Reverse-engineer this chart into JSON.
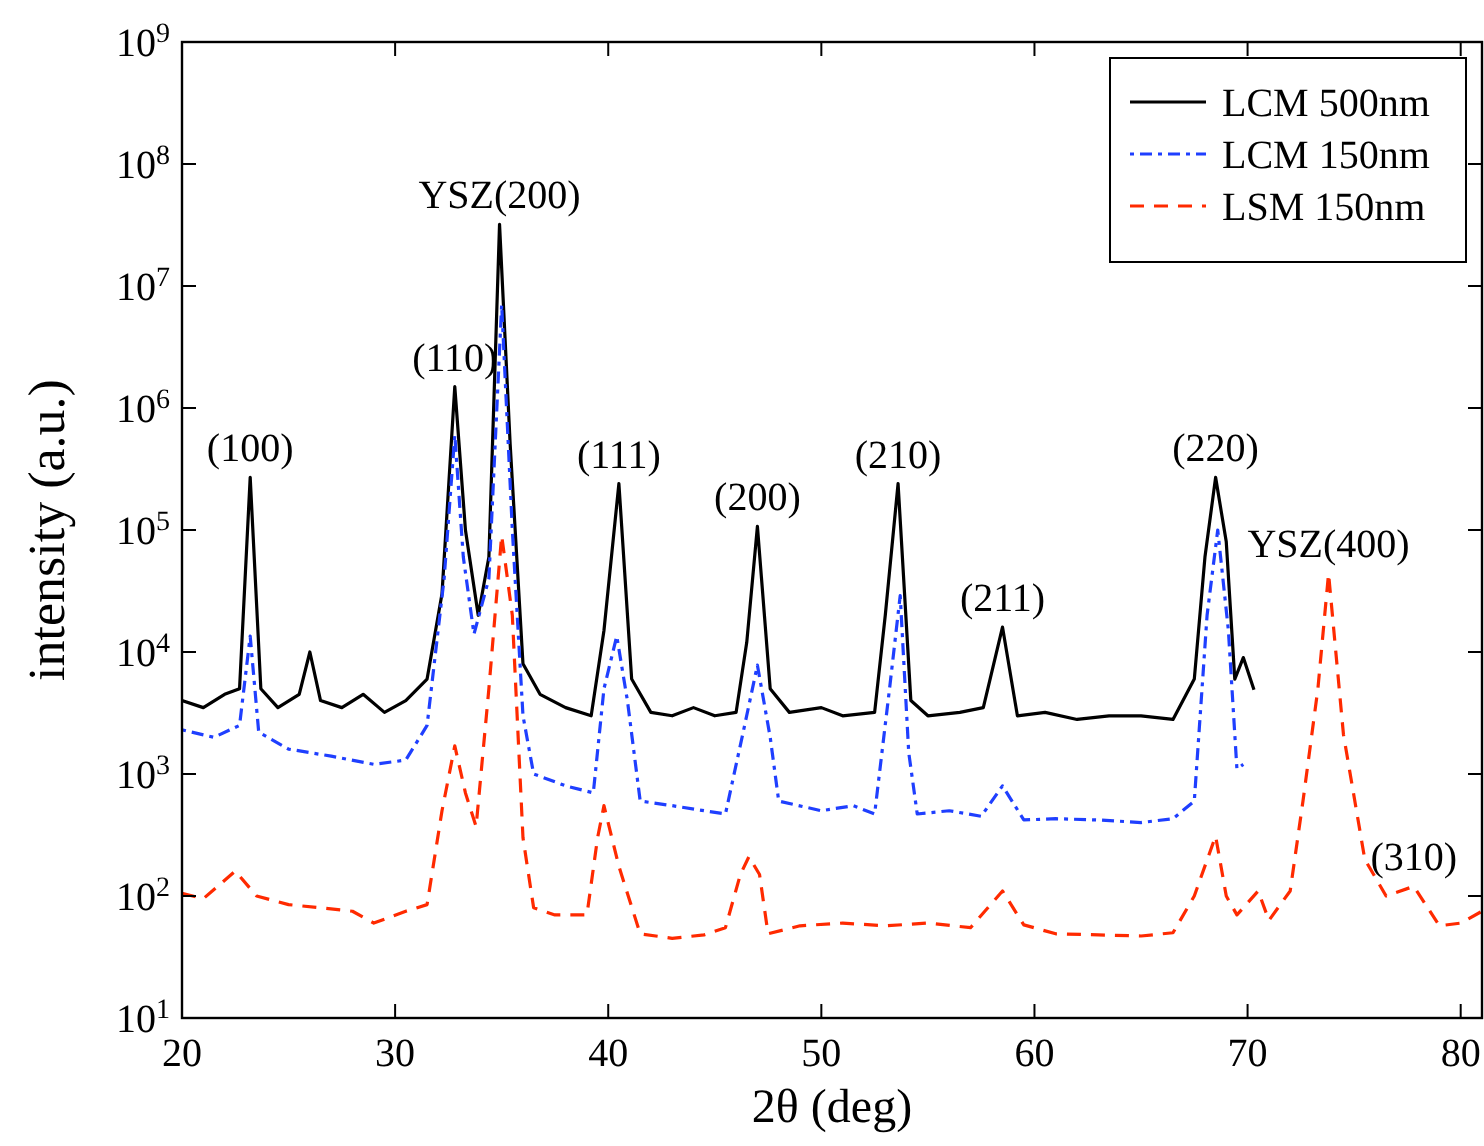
{
  "chart_data": {
    "type": "line",
    "xlabel": "2θ (deg)",
    "ylabel": "intensity (a.u.)",
    "log": "y",
    "grid": false,
    "legend": "top right",
    "xlim": [
      20,
      81
    ],
    "xticks": [
      20,
      30,
      40,
      50,
      60,
      70,
      80
    ],
    "ylim": [
      10,
      1000000000
    ],
    "yticks": [
      {
        "value": 10,
        "label": "10$^{1}$"
      },
      {
        "value": 100,
        "label": "10$^{2}$"
      },
      {
        "value": 1000,
        "label": "10$^{3}$"
      },
      {
        "value": 10000,
        "label": "10$^{4}$"
      },
      {
        "value": 100000,
        "label": "10$^{5}$"
      },
      {
        "value": 1000000,
        "label": "10$^{6}$"
      },
      {
        "value": 10000000,
        "label": "10$^{7}$"
      },
      {
        "value": 100000000,
        "label": "10$^{8}$"
      },
      {
        "value": 1000000000,
        "label": "10$^{9}$"
      }
    ],
    "series": [
      {
        "name": "LCM 500nm",
        "color": "#000000",
        "line_style": "solid",
        "x": [
          20,
          21,
          22,
          22.7,
          23.2,
          23.7,
          24.5,
          25.5,
          26,
          26.5,
          27.5,
          28.5,
          29.5,
          30.5,
          31.5,
          32.2,
          32.8,
          33.3,
          33.9,
          34.4,
          34.9,
          35.4,
          36,
          36.8,
          38,
          39.2,
          39.8,
          40.5,
          41.1,
          42,
          43,
          44,
          45,
          46,
          46.5,
          47,
          47.6,
          48.5,
          50,
          51,
          52.5,
          53,
          53.6,
          54.2,
          55,
          56.5,
          57.6,
          58.5,
          59.2,
          60.5,
          62,
          63.5,
          65,
          66.5,
          67.5,
          68,
          68.5,
          69,
          69.4,
          69.8,
          70.3
        ],
        "values": [
          4000,
          3500,
          4500,
          5000,
          270000,
          5000,
          3500,
          4500,
          10000,
          4000,
          3500,
          4500,
          3200,
          4000,
          6000,
          30000,
          1500000,
          100000,
          20000,
          60000,
          32000000,
          500000,
          8000,
          4500,
          3500,
          3000,
          15000,
          240000,
          6000,
          3200,
          3000,
          3500,
          3000,
          3200,
          12000,
          107000,
          5000,
          3200,
          3500,
          3000,
          3200,
          20000,
          240000,
          4000,
          3000,
          3200,
          3500,
          16000,
          3000,
          3200,
          2800,
          3000,
          3000,
          2800,
          6000,
          60000,
          270000,
          80000,
          6000,
          9000,
          4900
        ]
      },
      {
        "name": "LCM 150nm",
        "color": "#1f3fff",
        "line_style": "dotted",
        "x": [
          20,
          21.5,
          22.7,
          23.2,
          23.6,
          25,
          27,
          29,
          30.5,
          31.5,
          32.3,
          32.8,
          33.2,
          33.7,
          34.4,
          35,
          35.5,
          36,
          36.5,
          38,
          39.3,
          39.8,
          40.4,
          40.9,
          41.5,
          43,
          44.5,
          45.5,
          46.4,
          47,
          47.6,
          48,
          50,
          51.5,
          52.5,
          53.2,
          53.7,
          54.1,
          54.5,
          56,
          57.5,
          58.5,
          59.5,
          61,
          63,
          65,
          66.5,
          67.5,
          68.1,
          68.6,
          69.1,
          69.5,
          69.8
        ],
        "values": [
          2300,
          2000,
          2500,
          13500,
          2200,
          1600,
          1400,
          1200,
          1300,
          2500,
          40000,
          600000,
          60000,
          14000,
          40000,
          7000000,
          100000,
          3000,
          1000,
          800,
          700,
          5000,
          13500,
          4000,
          600,
          550,
          500,
          470,
          2500,
          7800,
          2000,
          600,
          500,
          550,
          470,
          5000,
          29000,
          1500,
          470,
          500,
          450,
          800,
          420,
          430,
          420,
          400,
          430,
          600,
          20000,
          100000,
          15000,
          1100,
          1200
        ]
      },
      {
        "name": "LSM 150nm",
        "color": "#ff2a00",
        "line_style": "dashed",
        "x": [
          20,
          21,
          22.5,
          23.5,
          25,
          26.5,
          28,
          29,
          30.5,
          31.5,
          32.2,
          32.8,
          33.3,
          33.8,
          34.4,
          35,
          35.5,
          36,
          36.5,
          37.5,
          39,
          39.5,
          39.8,
          40.5,
          41.5,
          43,
          44.5,
          45.5,
          46.2,
          46.6,
          47.1,
          47.5,
          49,
          51,
          53,
          55,
          57,
          58.5,
          59.5,
          61,
          63,
          65,
          66.5,
          67.5,
          68.5,
          69,
          69.5,
          70.5,
          71,
          72,
          72.6,
          73.3,
          73.8,
          74.5,
          75.5,
          76.5,
          77.8,
          79,
          80,
          81
        ],
        "values": [
          105,
          95,
          160,
          100,
          85,
          80,
          75,
          60,
          75,
          85,
          500,
          1700,
          700,
          370,
          5000,
          90000,
          20000,
          300,
          80,
          70,
          70,
          300,
          550,
          175,
          49,
          45,
          48,
          55,
          150,
          210,
          150,
          49,
          57,
          60,
          57,
          60,
          55,
          110,
          58,
          49,
          48,
          47,
          50,
          100,
          310,
          100,
          70,
          110,
          63,
          110,
          600,
          5000,
          44000,
          2100,
          200,
          100,
          120,
          57,
          60,
          75
        ]
      }
    ],
    "annotations": [
      {
        "text": "(100)",
        "x": 23.2,
        "y": 270000
      },
      {
        "text": "(110)",
        "x": 32.8,
        "y": 1500000
      },
      {
        "text": "YSZ(200)",
        "x": 34.9,
        "y": 32000000
      },
      {
        "text": "(111)",
        "x": 40.5,
        "y": 240000
      },
      {
        "text": "(200)",
        "x": 47,
        "y": 107000
      },
      {
        "text": "(210)",
        "x": 53.6,
        "y": 240000
      },
      {
        "text": "(211)",
        "x": 58.5,
        "y": 16000
      },
      {
        "text": "(220)",
        "x": 68.5,
        "y": 270000
      },
      {
        "text": "YSZ(400)",
        "x": 73.8,
        "y": 44000
      },
      {
        "text": "(310)",
        "x": 77.8,
        "y": 120
      }
    ]
  }
}
